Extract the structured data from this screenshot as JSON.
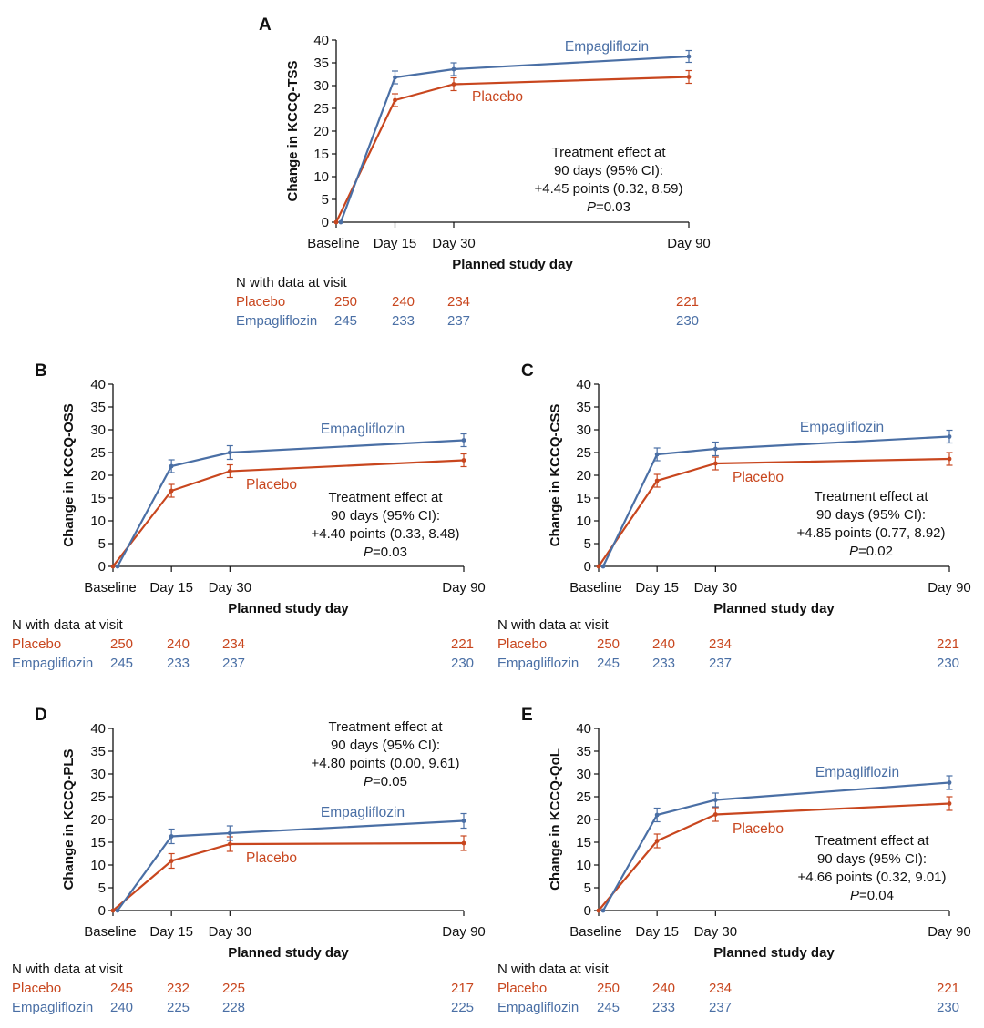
{
  "colors": {
    "placebo": "#c8461e",
    "empagliflozin": "#4a6fa5",
    "axis": "#111111"
  },
  "n_table_header": "N with data at visit",
  "chart_data": [
    {
      "panel": "A",
      "type": "line",
      "ylabel": "Change in KCCQ-TSS",
      "xlabel": "Planned study day",
      "categories": [
        "Baseline",
        "Day 15",
        "Day 30",
        "Day 90"
      ],
      "x_days": [
        0,
        15,
        30,
        90
      ],
      "ylim": [
        0,
        40
      ],
      "yticks": [
        0,
        5,
        10,
        15,
        20,
        25,
        30,
        35,
        40
      ],
      "series": [
        {
          "name": "Empagliflozin",
          "values": [
            0,
            31.8,
            33.6,
            36.4
          ],
          "err": [
            0,
            1.4,
            1.4,
            1.3
          ]
        },
        {
          "name": "Placebo",
          "values": [
            0,
            26.8,
            30.3,
            31.9
          ],
          "err": [
            0,
            1.4,
            1.4,
            1.4
          ]
        }
      ],
      "annotation": [
        "Treatment effect at",
        "90 days (95% CI):",
        "+4.45 points (0.32, 8.59)"
      ],
      "p_label": "P",
      "p_value": "=0.03",
      "n_rows": [
        {
          "name": "Placebo",
          "values": [
            "250",
            "240",
            "234",
            "221"
          ]
        },
        {
          "name": "Empagliflozin",
          "values": [
            "245",
            "233",
            "237",
            "230"
          ]
        }
      ]
    },
    {
      "panel": "B",
      "type": "line",
      "ylabel": "Change in KCCQ-OSS",
      "xlabel": "Planned study day",
      "categories": [
        "Baseline",
        "Day 15",
        "Day 30",
        "Day 90"
      ],
      "x_days": [
        0,
        15,
        30,
        90
      ],
      "ylim": [
        0,
        40
      ],
      "yticks": [
        0,
        5,
        10,
        15,
        20,
        25,
        30,
        35,
        40
      ],
      "tick_overrides": {
        "5": "5"
      },
      "series": [
        {
          "name": "Empagliflozin",
          "values": [
            0,
            22.0,
            25.0,
            27.7
          ],
          "err": [
            0,
            1.4,
            1.5,
            1.4
          ]
        },
        {
          "name": "Placebo",
          "values": [
            0,
            16.6,
            20.9,
            23.3
          ],
          "err": [
            0,
            1.4,
            1.4,
            1.4
          ]
        }
      ],
      "annotation": [
        "Treatment effect at",
        "90 days (95% CI):",
        "+4.40 points (0.33, 8.48)"
      ],
      "p_label": "P",
      "p_value": "=0.03",
      "n_rows": [
        {
          "name": "Placebo",
          "values": [
            "250",
            "240",
            "234",
            "221"
          ]
        },
        {
          "name": "Empagliflozin",
          "values": [
            "245",
            "233",
            "237",
            "230"
          ]
        }
      ]
    },
    {
      "panel": "C",
      "type": "line",
      "ylabel": "Change in KCCQ-CSS",
      "xlabel": "Planned study day",
      "categories": [
        "Baseline",
        "Day 15",
        "Day 30",
        "Day 90"
      ],
      "x_days": [
        0,
        15,
        30,
        90
      ],
      "ylim": [
        0,
        40
      ],
      "yticks": [
        0,
        5,
        10,
        15,
        20,
        25,
        30,
        35,
        40
      ],
      "series": [
        {
          "name": "Empagliflozin",
          "values": [
            0,
            24.6,
            25.8,
            28.5
          ],
          "err": [
            0,
            1.4,
            1.5,
            1.4
          ]
        },
        {
          "name": "Placebo",
          "values": [
            0,
            18.8,
            22.6,
            23.6
          ],
          "err": [
            0,
            1.4,
            1.4,
            1.4
          ]
        }
      ],
      "annotation": [
        "Treatment effect at",
        "90 days (95% CI):",
        "+4.85 points (0.77, 8.92)"
      ],
      "p_label": "P",
      "p_value": "=0.02",
      "n_rows": [
        {
          "name": "Placebo",
          "values": [
            "250",
            "240",
            "234",
            "221"
          ]
        },
        {
          "name": "Empagliflozin",
          "values": [
            "245",
            "233",
            "237",
            "230"
          ]
        }
      ]
    },
    {
      "panel": "D",
      "type": "line",
      "ylabel": "Change in KCCQ-PLS",
      "xlabel": "Planned study day",
      "categories": [
        "Baseline",
        "Day 15",
        "Day 30",
        "Day 90"
      ],
      "x_days": [
        0,
        15,
        30,
        90
      ],
      "ylim": [
        0,
        40
      ],
      "yticks": [
        0,
        5,
        10,
        15,
        20,
        25,
        30,
        35,
        40
      ],
      "series": [
        {
          "name": "Empagliflozin",
          "values": [
            0,
            16.3,
            17.0,
            19.7
          ],
          "err": [
            0,
            1.6,
            1.6,
            1.6
          ]
        },
        {
          "name": "Placebo",
          "values": [
            0,
            10.9,
            14.6,
            14.8
          ],
          "err": [
            0,
            1.6,
            1.6,
            1.6
          ]
        }
      ],
      "annotation": [
        "Treatment effect at",
        "90 days (95% CI):",
        "+4.80 points (0.00, 9.61)"
      ],
      "p_label": "P",
      "p_value": "=0.05",
      "n_rows": [
        {
          "name": "Placebo",
          "values": [
            "245",
            "232",
            "225",
            "217"
          ]
        },
        {
          "name": "Empagliflozin",
          "values": [
            "240",
            "225",
            "228",
            "225"
          ]
        }
      ]
    },
    {
      "panel": "E",
      "type": "line",
      "ylabel": "Change in KCCQ-QoL",
      "xlabel": "Planned study day",
      "categories": [
        "Baseline",
        "Day 15",
        "Day 30",
        "Day 90"
      ],
      "x_days": [
        0,
        15,
        30,
        90
      ],
      "ylim": [
        0,
        40
      ],
      "yticks": [
        0,
        5,
        10,
        15,
        20,
        25,
        30,
        35,
        40
      ],
      "series": [
        {
          "name": "Empagliflozin",
          "values": [
            0,
            21.0,
            24.3,
            28.1
          ],
          "err": [
            0,
            1.5,
            1.5,
            1.5
          ]
        },
        {
          "name": "Placebo",
          "values": [
            0,
            15.3,
            21.1,
            23.5
          ],
          "err": [
            0,
            1.5,
            1.5,
            1.5
          ]
        }
      ],
      "annotation": [
        "Treatment effect at",
        "90 days (95% CI):",
        "+4.66 points (0.32, 9.01)"
      ],
      "p_label": "P",
      "p_value": "=0.04",
      "n_rows": [
        {
          "name": "Placebo",
          "values": [
            "250",
            "240",
            "234",
            "221"
          ]
        },
        {
          "name": "Empagliflozin",
          "values": [
            "245",
            "233",
            "237",
            "230"
          ]
        }
      ]
    }
  ]
}
